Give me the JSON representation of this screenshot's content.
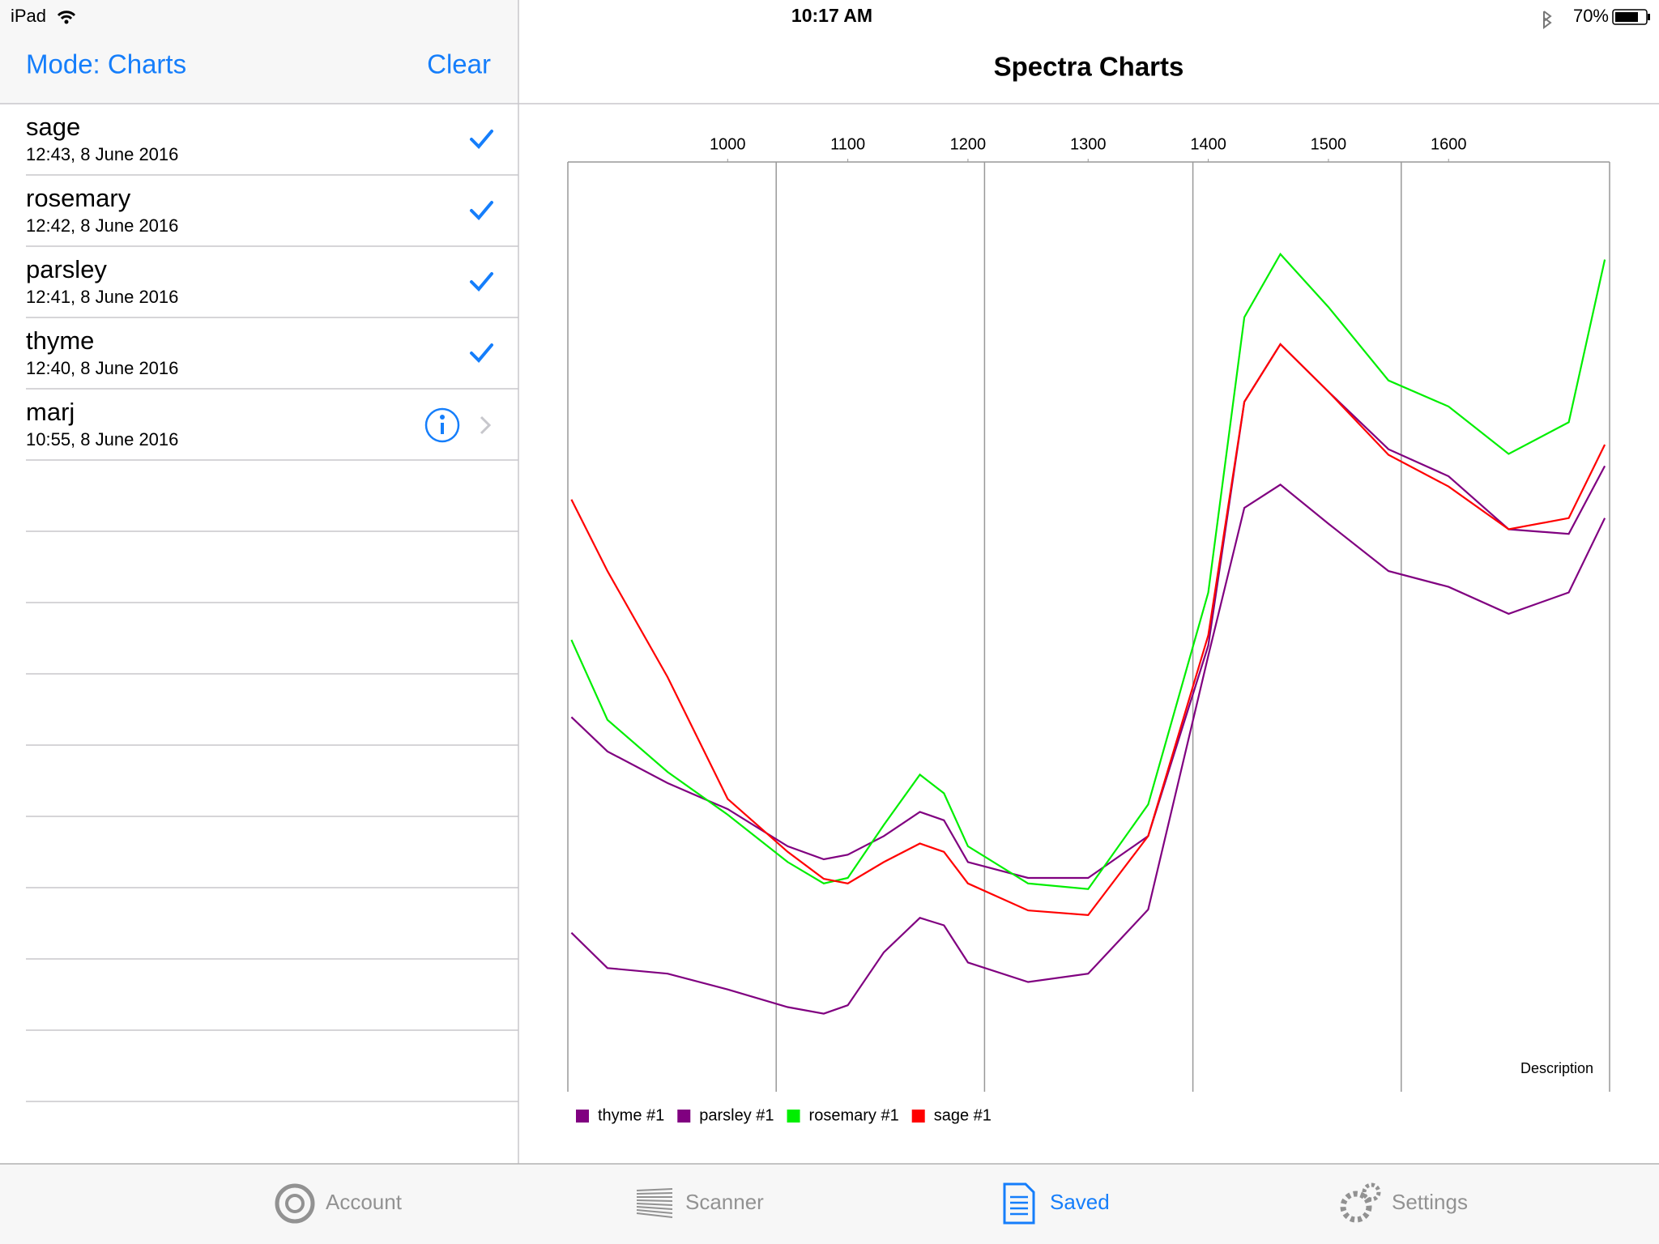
{
  "status_bar": {
    "device": "iPad",
    "time": "10:17 AM",
    "battery": "70%"
  },
  "sidebar": {
    "mode_button": "Mode: Charts",
    "clear_button": "Clear",
    "items": [
      {
        "name": "sage",
        "date": "12:43, 8 June 2016",
        "checked": true
      },
      {
        "name": "rosemary",
        "date": "12:42, 8 June 2016",
        "checked": true
      },
      {
        "name": "parsley",
        "date": "12:41, 8 June 2016",
        "checked": true
      },
      {
        "name": "thyme",
        "date": "12:40, 8 June 2016",
        "checked": true
      },
      {
        "name": "marj",
        "date": "10:55, 8 June 2016",
        "checked": false
      }
    ]
  },
  "header": {
    "title": "Spectra Charts"
  },
  "chart_data": {
    "type": "line",
    "annotation": "Description",
    "x": [
      870,
      900,
      950,
      1000,
      1050,
      1080,
      1100,
      1130,
      1160,
      1180,
      1200,
      1250,
      1300,
      1350,
      1400,
      1430,
      1460,
      1500,
      1550,
      1600,
      1650,
      1700,
      1730
    ],
    "xlim": [
      867,
      1734
    ],
    "xticks": [
      1000,
      1100,
      1200,
      1300,
      1400,
      1500,
      1600
    ],
    "xaxis_position": "top",
    "ylim": [
      0,
      100
    ],
    "legend": "bottom-left",
    "series": [
      {
        "name": "thyme #1",
        "color": "#800080",
        "values": [
          17.1,
          13.3,
          12.7,
          11.0,
          9.1,
          8.4,
          9.3,
          15.0,
          18.7,
          17.9,
          13.9,
          11.8,
          12.7,
          19.6,
          46.9,
          62.8,
          65.3,
          61.1,
          56.0,
          54.3,
          51.4,
          53.7,
          61.7
        ]
      },
      {
        "name": "parsley #1",
        "color": "#800080",
        "values": [
          40.3,
          36.6,
          33.2,
          30.4,
          26.4,
          25.0,
          25.5,
          27.5,
          30.1,
          29.2,
          24.7,
          23.0,
          23.0,
          27.5,
          48.0,
          74.2,
          80.4,
          75.3,
          69.1,
          66.2,
          60.5,
          60.0,
          67.3
        ]
      },
      {
        "name": "rosemary #1",
        "color": "#00ee00",
        "values": [
          48.6,
          40.0,
          34.4,
          29.8,
          24.7,
          22.4,
          23.0,
          28.7,
          34.1,
          32.1,
          26.4,
          22.4,
          21.8,
          30.9,
          53.7,
          83.3,
          90.1,
          84.4,
          76.5,
          73.7,
          68.6,
          72.0,
          89.5
        ]
      },
      {
        "name": "sage #1",
        "color": "#ff0000",
        "values": [
          63.7,
          56.0,
          44.6,
          31.5,
          25.8,
          22.9,
          22.4,
          24.7,
          26.7,
          25.8,
          22.4,
          19.5,
          19.0,
          27.5,
          49.1,
          74.2,
          80.4,
          75.3,
          68.5,
          65.1,
          60.5,
          61.7,
          69.6
        ]
      }
    ]
  },
  "tab_bar": {
    "tabs": [
      "Account",
      "Scanner",
      "Saved",
      "Settings"
    ],
    "selected": 2
  }
}
